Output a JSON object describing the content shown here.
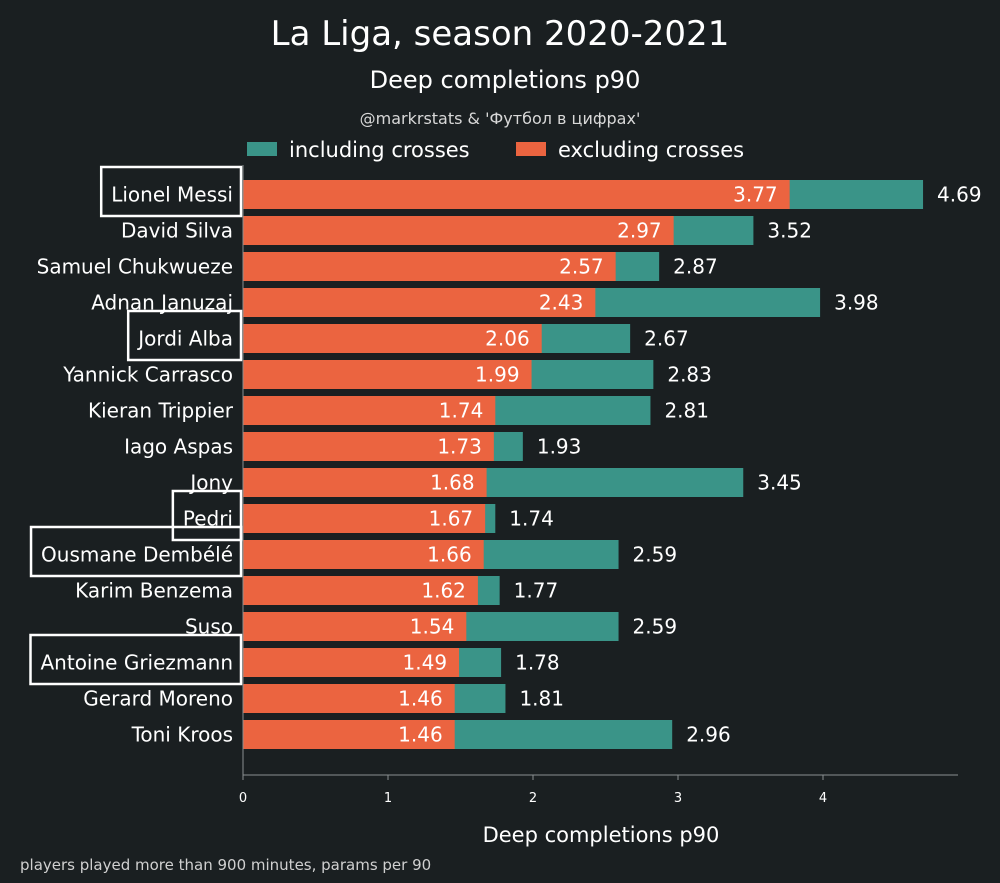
{
  "chart_data": {
    "type": "bar",
    "orientation": "horizontal",
    "stacked": "overlay",
    "title": "La Liga, season 2020-2021",
    "subtitle": "Deep completions p90",
    "credit": "@markrstats & 'Футбол в цифрах'",
    "xlabel": "Deep completions p90",
    "footnote": "players played more than 900 minutes, params per 90",
    "xlim": [
      0,
      4.9
    ],
    "xticks": [
      0,
      1,
      2,
      3,
      4
    ],
    "grid": false,
    "legend_position": "top",
    "categories": [
      "Lionel Messi",
      "David Silva",
      "Samuel Chukwueze",
      "Adnan Januzaj",
      "Jordi Alba",
      "Yannick Carrasco",
      "Kieran Trippier",
      "Iago Aspas",
      "Jony",
      "Pedri",
      "Ousmane Dembélé",
      "Karim Benzema",
      "Suso",
      "Antoine Griezmann",
      "Gerard Moreno",
      "Toni Kroos"
    ],
    "highlighted": [
      "Lionel Messi",
      "Jordi Alba",
      "Pedri",
      "Ousmane Dembélé",
      "Antoine Griezmann"
    ],
    "series": [
      {
        "name": "including crosses",
        "color": "#3a9488",
        "values": [
          4.69,
          3.52,
          2.87,
          3.98,
          2.67,
          2.83,
          2.81,
          1.93,
          3.45,
          1.74,
          2.59,
          1.77,
          2.59,
          1.78,
          1.81,
          2.96
        ],
        "labels": [
          "4.69",
          "3.52",
          "2.87",
          "3.98",
          "2.67",
          "2.83",
          "2.81",
          "1.93",
          "3.45",
          "1.74",
          "2.59",
          "1.77",
          "2.59",
          "1.78",
          "1.81",
          "2.96"
        ]
      },
      {
        "name": "excluding crosses",
        "color": "#eb6440",
        "values": [
          3.77,
          2.97,
          2.57,
          2.43,
          2.06,
          1.99,
          1.74,
          1.73,
          1.68,
          1.67,
          1.66,
          1.62,
          1.54,
          1.49,
          1.46,
          1.46
        ],
        "labels": [
          "3.77",
          "2.97",
          "2.57",
          "2.43",
          "2.06",
          "1.99",
          "1.74",
          "1.73",
          "1.68",
          "1.67",
          "1.66",
          "1.62",
          "1.54",
          "1.49",
          "1.46",
          "1.46"
        ]
      }
    ]
  }
}
